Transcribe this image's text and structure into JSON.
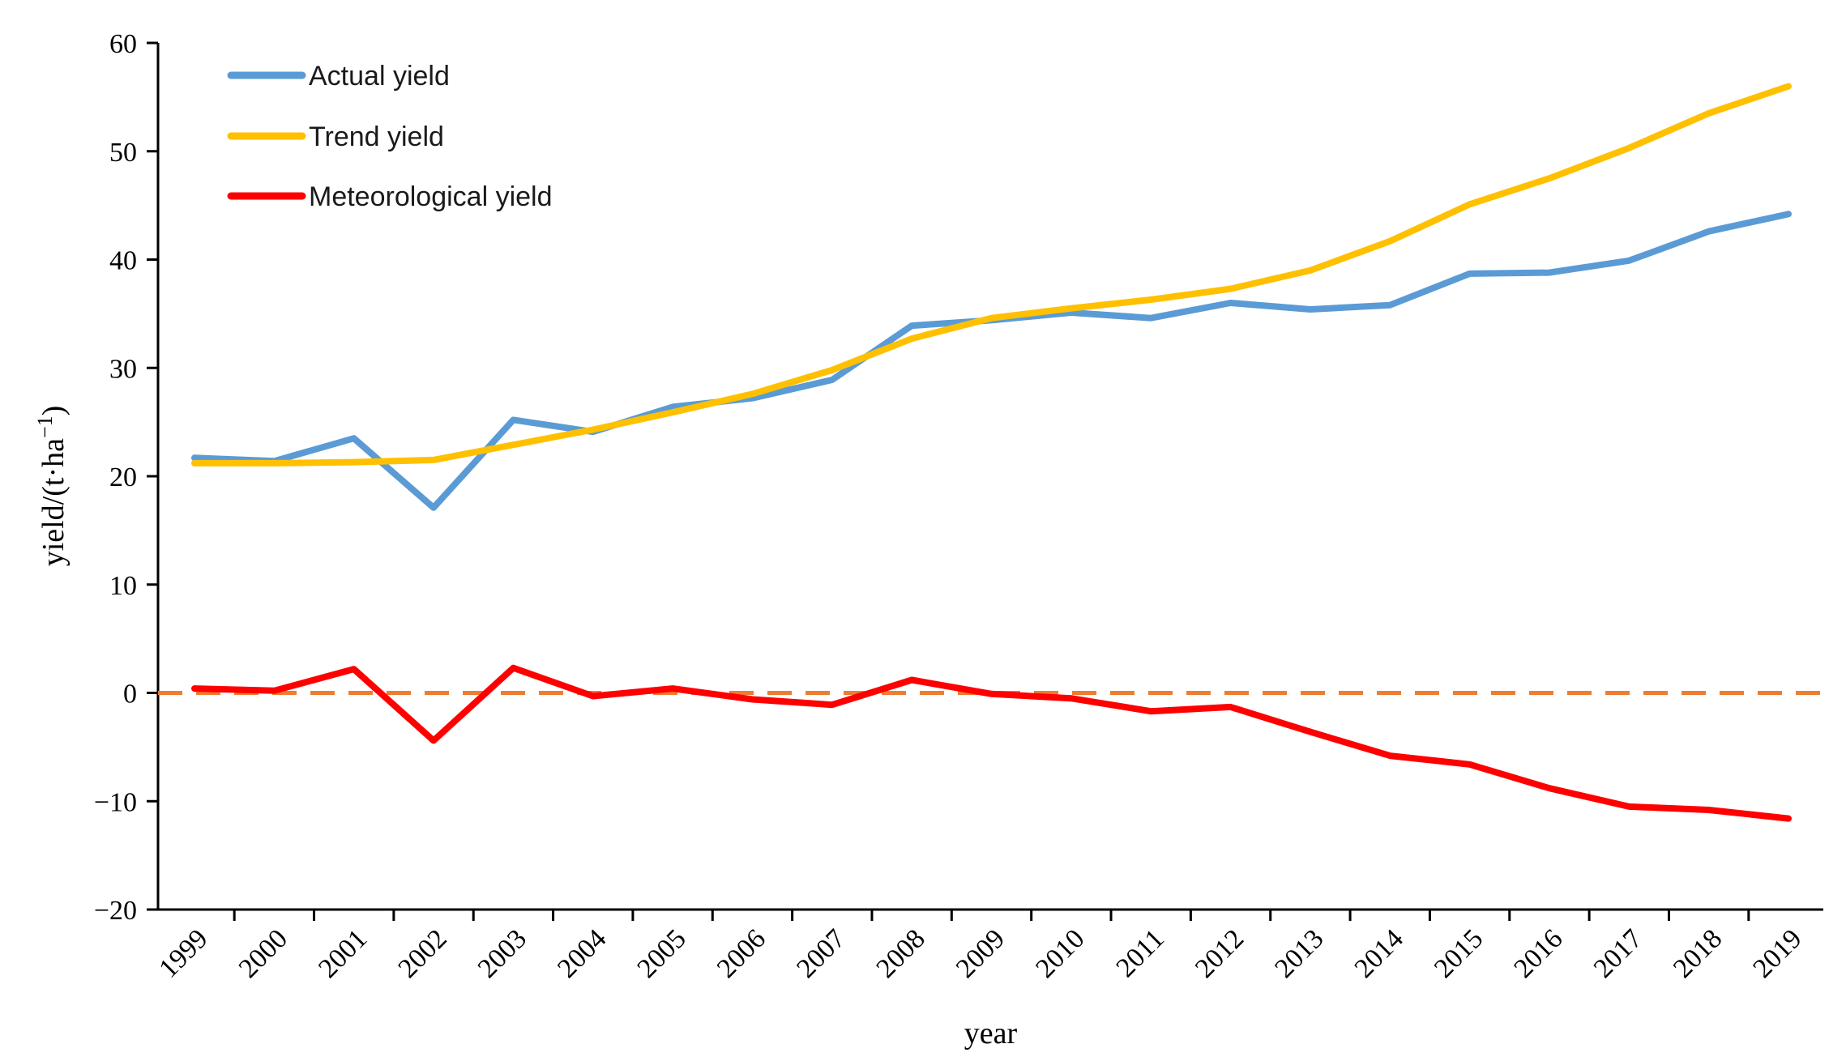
{
  "chart_data": {
    "type": "line",
    "title": "",
    "xlabel": "year",
    "ylabel_parts": {
      "main": "yield/(t·ha",
      "superscript": "−1",
      "close": ")"
    },
    "x": [
      "1999",
      "2000",
      "2001",
      "2002",
      "2003",
      "2004",
      "2005",
      "2006",
      "2007",
      "2008",
      "2009",
      "2010",
      "2011",
      "2012",
      "2013",
      "2014",
      "2015",
      "2016",
      "2017",
      "2018",
      "2019"
    ],
    "ylim": [
      -20,
      60
    ],
    "yticks": [
      60,
      50,
      40,
      30,
      20,
      10,
      0,
      -10,
      -20
    ],
    "ytick_labels": [
      "60",
      "50",
      "40",
      "30",
      "20",
      "10",
      "0",
      "−10",
      "−20"
    ],
    "grid": false,
    "legend_position": "top-left",
    "series": [
      {
        "name": "Actual yield",
        "color": "#5B9BD5",
        "values": [
          21.7,
          21.4,
          23.5,
          17.1,
          25.2,
          24.1,
          26.4,
          27.2,
          28.9,
          33.9,
          34.4,
          35.1,
          34.6,
          36.0,
          35.4,
          35.8,
          38.7,
          38.8,
          39.9,
          42.6,
          44.2
        ]
      },
      {
        "name": "Trend yield",
        "color": "#FFC000",
        "values": [
          21.2,
          21.2,
          21.3,
          21.5,
          22.9,
          24.3,
          25.9,
          27.6,
          29.8,
          32.7,
          34.6,
          35.5,
          36.3,
          37.3,
          39.0,
          41.7,
          45.1,
          47.5,
          50.3,
          53.5,
          56.0
        ]
      },
      {
        "name": "Meteorological yield",
        "color": "#FF0000",
        "values": [
          0.4,
          0.2,
          2.2,
          -4.4,
          2.3,
          -0.3,
          0.4,
          -0.6,
          -1.1,
          1.2,
          -0.1,
          -0.5,
          -1.7,
          -1.3,
          -3.6,
          -5.8,
          -6.6,
          -8.8,
          -10.5,
          -10.8,
          -11.6
        ]
      }
    ],
    "reference_line": {
      "value": 0,
      "color": "#ED7D31",
      "style": "dashed"
    }
  }
}
